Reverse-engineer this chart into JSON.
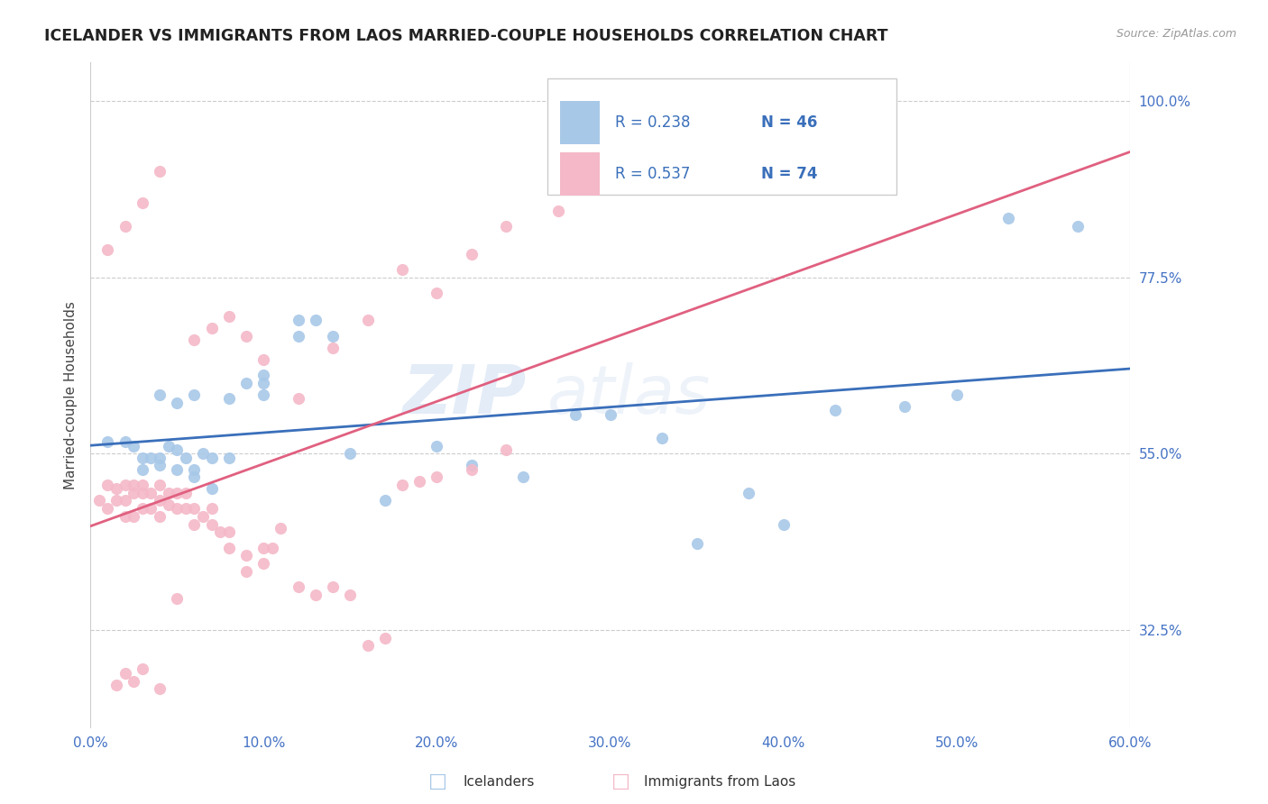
{
  "title": "ICELANDER VS IMMIGRANTS FROM LAOS MARRIED-COUPLE HOUSEHOLDS CORRELATION CHART",
  "source": "Source: ZipAtlas.com",
  "xlabel_ticks": [
    "0.0%",
    "10.0%",
    "20.0%",
    "30.0%",
    "40.0%",
    "50.0%",
    "60.0%"
  ],
  "ylabel_ticks": [
    "32.5%",
    "55.0%",
    "77.5%",
    "100.0%"
  ],
  "ylabel_label": "Married-couple Households",
  "xlim": [
    0.0,
    0.6
  ],
  "ylim": [
    0.2,
    1.05
  ],
  "yticks": [
    0.325,
    0.55,
    0.775,
    1.0
  ],
  "xticks": [
    0.0,
    0.1,
    0.2,
    0.3,
    0.4,
    0.5,
    0.6
  ],
  "blue_R": "0.238",
  "blue_N": "46",
  "pink_R": "0.537",
  "pink_N": "74",
  "blue_color": "#a8c8e8",
  "pink_color": "#f4b8c8",
  "blue_line_color": "#3a6fba",
  "pink_line_color": "#e06080",
  "legend_label_blue": "Icelanders",
  "legend_label_pink": "Immigrants from Laos",
  "watermark": "ZIPatlas",
  "blue_x": [
    0.01,
    0.02,
    0.025,
    0.03,
    0.03,
    0.035,
    0.04,
    0.04,
    0.045,
    0.05,
    0.05,
    0.055,
    0.06,
    0.06,
    0.065,
    0.07,
    0.07,
    0.08,
    0.09,
    0.1,
    0.1,
    0.12,
    0.13,
    0.15,
    0.17,
    0.2,
    0.22,
    0.25,
    0.28,
    0.3,
    0.33,
    0.35,
    0.38,
    0.4,
    0.43,
    0.47,
    0.5,
    0.53,
    0.57,
    0.04,
    0.05,
    0.06,
    0.08,
    0.1,
    0.12,
    0.14
  ],
  "blue_y": [
    0.565,
    0.565,
    0.56,
    0.545,
    0.53,
    0.545,
    0.545,
    0.535,
    0.56,
    0.555,
    0.53,
    0.545,
    0.53,
    0.52,
    0.55,
    0.545,
    0.505,
    0.545,
    0.64,
    0.65,
    0.625,
    0.72,
    0.72,
    0.55,
    0.49,
    0.56,
    0.535,
    0.52,
    0.6,
    0.6,
    0.57,
    0.435,
    0.5,
    0.46,
    0.605,
    0.61,
    0.625,
    0.85,
    0.84,
    0.625,
    0.615,
    0.625,
    0.62,
    0.64,
    0.7,
    0.7
  ],
  "pink_x": [
    0.005,
    0.01,
    0.01,
    0.015,
    0.015,
    0.02,
    0.02,
    0.02,
    0.025,
    0.025,
    0.025,
    0.03,
    0.03,
    0.03,
    0.035,
    0.035,
    0.04,
    0.04,
    0.04,
    0.045,
    0.045,
    0.05,
    0.05,
    0.055,
    0.055,
    0.06,
    0.06,
    0.065,
    0.07,
    0.07,
    0.075,
    0.08,
    0.08,
    0.09,
    0.09,
    0.1,
    0.1,
    0.105,
    0.11,
    0.12,
    0.13,
    0.14,
    0.15,
    0.16,
    0.17,
    0.18,
    0.19,
    0.2,
    0.22,
    0.24,
    0.015,
    0.02,
    0.025,
    0.03,
    0.04,
    0.05,
    0.06,
    0.07,
    0.08,
    0.09,
    0.1,
    0.12,
    0.14,
    0.16,
    0.18,
    0.2,
    0.22,
    0.24,
    0.27,
    0.3,
    0.01,
    0.02,
    0.03,
    0.04
  ],
  "pink_y": [
    0.49,
    0.51,
    0.48,
    0.505,
    0.49,
    0.51,
    0.49,
    0.47,
    0.51,
    0.5,
    0.47,
    0.51,
    0.5,
    0.48,
    0.5,
    0.48,
    0.51,
    0.49,
    0.47,
    0.5,
    0.485,
    0.5,
    0.48,
    0.5,
    0.48,
    0.48,
    0.46,
    0.47,
    0.48,
    0.46,
    0.45,
    0.45,
    0.43,
    0.42,
    0.4,
    0.41,
    0.43,
    0.43,
    0.455,
    0.38,
    0.37,
    0.38,
    0.37,
    0.305,
    0.315,
    0.51,
    0.515,
    0.52,
    0.53,
    0.555,
    0.255,
    0.27,
    0.26,
    0.275,
    0.25,
    0.365,
    0.695,
    0.71,
    0.725,
    0.7,
    0.67,
    0.62,
    0.685,
    0.72,
    0.785,
    0.755,
    0.805,
    0.84,
    0.86,
    0.935,
    0.81,
    0.84,
    0.87,
    0.91
  ]
}
